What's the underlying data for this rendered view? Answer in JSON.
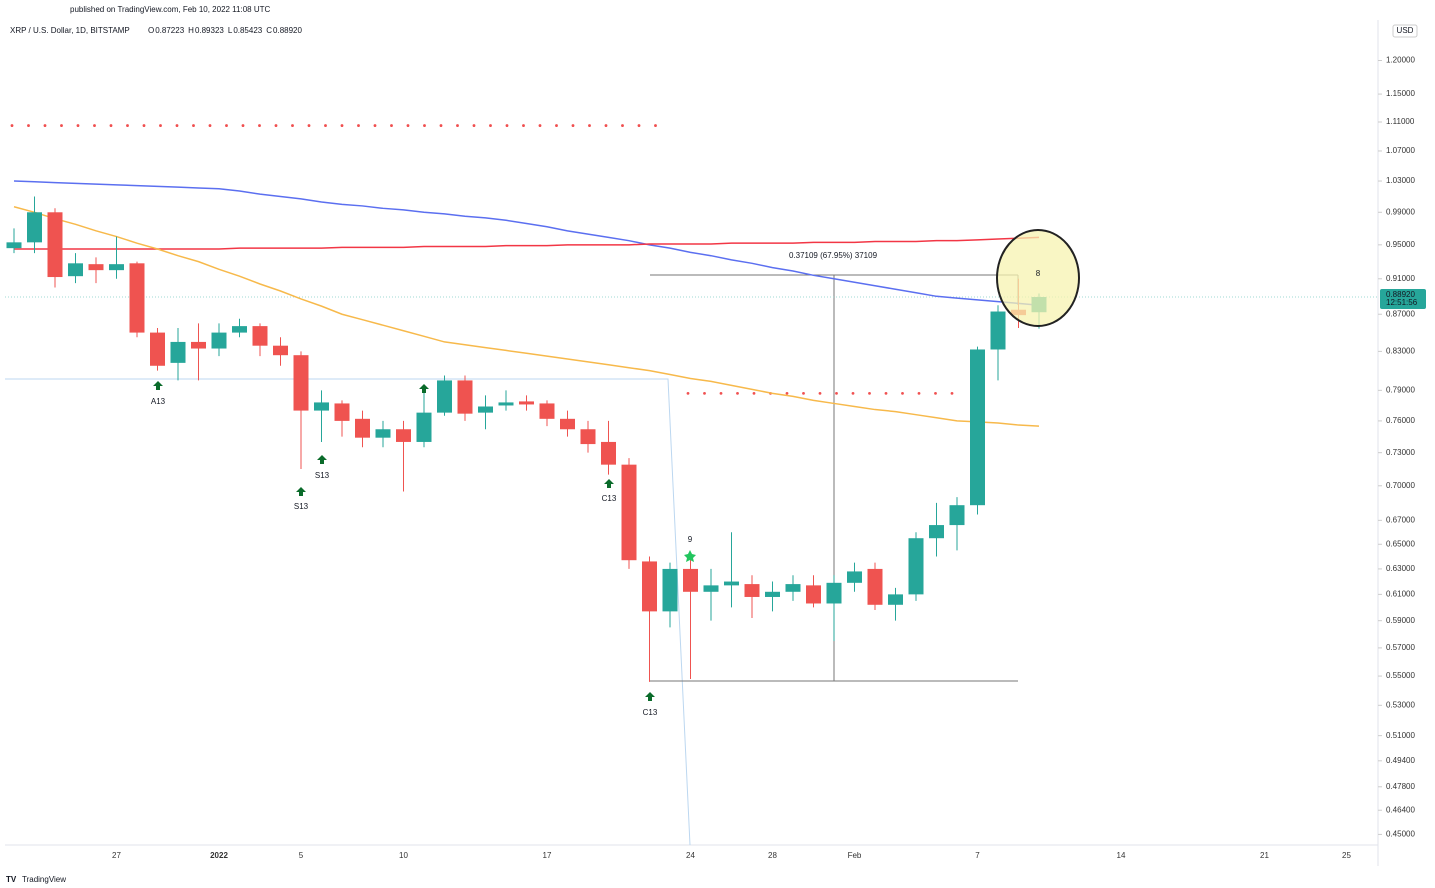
{
  "chart_data": {
    "type": "candlestick",
    "published": "published on TradingView.com, Feb 10, 2022 11:08 UTC",
    "symbol": "XRP / U.S. Dollar, 1D, BITSTAMP",
    "ohlc_prefixes": [
      "O",
      "H",
      "L",
      "C"
    ],
    "currency": "USD",
    "brand": "TradingView",
    "countdown": "12:51:56",
    "last_price": {
      "value": 0.8892,
      "label": "0.88920"
    },
    "log_scale": true,
    "up_color": "#26a69a",
    "down_color": "#ef5350",
    "categories": [
      null,
      null,
      null,
      null,
      null,
      "27",
      null,
      null,
      null,
      null,
      "2022",
      null,
      null,
      null,
      "5",
      null,
      null,
      null,
      null,
      "10",
      null,
      null,
      null,
      null,
      null,
      null,
      "17",
      null,
      null,
      null,
      null,
      null,
      null,
      "24",
      null,
      null,
      null,
      "28",
      null,
      null,
      null,
      "Feb",
      null,
      null,
      null,
      null,
      null,
      "7",
      null,
      null,
      null,
      null,
      null,
      null,
      "14",
      null,
      null,
      null,
      null,
      null,
      null,
      "21",
      null,
      null,
      null,
      "25",
      null
    ],
    "open": [
      0.946,
      0.953,
      0.99,
      0.913,
      0.927,
      0.92,
      0.928,
      0.85,
      0.818,
      0.84,
      0.833,
      0.85,
      0.857,
      0.836,
      0.826,
      0.77,
      0.777,
      0.762,
      0.744,
      0.752,
      0.74,
      0.768,
      0.8,
      0.768,
      0.775,
      0.779,
      0.777,
      0.762,
      0.752,
      0.74,
      0.719,
      0.636,
      0.597,
      0.63,
      0.612,
      0.617,
      0.618,
      0.608,
      0.612,
      0.617,
      0.603,
      0.619,
      0.63,
      0.602,
      0.61,
      0.655,
      0.666,
      0.683,
      0.832,
      0.875,
      0.87223,
      null,
      null,
      null,
      null,
      null,
      null,
      null,
      null,
      null,
      null,
      null,
      null,
      null,
      null,
      null,
      null
    ],
    "high": [
      0.97,
      1.01,
      0.995,
      0.94,
      0.935,
      0.96,
      0.93,
      0.855,
      0.855,
      0.86,
      0.86,
      0.865,
      0.86,
      0.845,
      0.83,
      0.79,
      0.78,
      0.77,
      0.76,
      0.76,
      0.79,
      0.805,
      0.805,
      0.785,
      0.79,
      0.785,
      0.78,
      0.77,
      0.76,
      0.76,
      0.725,
      0.64,
      0.635,
      0.64,
      0.63,
      0.66,
      0.625,
      0.62,
      0.625,
      0.625,
      0.625,
      0.635,
      0.635,
      0.615,
      0.66,
      0.685,
      0.69,
      0.835,
      0.88,
      0.91,
      0.89323,
      null,
      null,
      null,
      null,
      null,
      null,
      null,
      null,
      null,
      null,
      null,
      null,
      null,
      null,
      null,
      null
    ],
    "low": [
      0.94,
      0.94,
      0.9,
      0.905,
      0.905,
      0.91,
      0.845,
      0.81,
      0.8,
      0.8,
      0.825,
      0.845,
      0.825,
      0.815,
      0.715,
      0.74,
      0.745,
      0.735,
      0.735,
      0.695,
      0.735,
      0.765,
      0.76,
      0.752,
      0.77,
      0.77,
      0.755,
      0.745,
      0.73,
      0.71,
      0.63,
      0.546,
      0.585,
      0.548,
      0.59,
      0.6,
      0.592,
      0.597,
      0.605,
      0.6,
      0.575,
      0.612,
      0.598,
      0.59,
      0.605,
      0.64,
      0.645,
      0.675,
      0.8,
      0.855,
      0.85423,
      null,
      null,
      null,
      null,
      null,
      null,
      null,
      null,
      null,
      null,
      null,
      null,
      null,
      null,
      null,
      null
    ],
    "close": [
      0.953,
      0.99,
      0.912,
      0.928,
      0.92,
      0.927,
      0.85,
      0.815,
      0.84,
      0.833,
      0.85,
      0.857,
      0.836,
      0.826,
      0.77,
      0.778,
      0.76,
      0.744,
      0.752,
      0.74,
      0.768,
      0.8,
      0.767,
      0.774,
      0.778,
      0.776,
      0.762,
      0.752,
      0.738,
      0.719,
      0.637,
      0.597,
      0.63,
      0.612,
      0.617,
      0.62,
      0.608,
      0.612,
      0.618,
      0.603,
      0.619,
      0.628,
      0.602,
      0.61,
      0.655,
      0.666,
      0.683,
      0.832,
      0.873,
      0.869,
      0.8892,
      null,
      null,
      null,
      null,
      null,
      null,
      null,
      null,
      null,
      null,
      null,
      null,
      null,
      null,
      null,
      null
    ],
    "lines": [
      {
        "color": "#5b6ff0",
        "values": [
          1.03,
          1.029,
          1.028,
          1.027,
          1.026,
          1.025,
          1.024,
          1.023,
          1.022,
          1.021,
          1.02,
          1.017,
          1.013,
          1.01,
          1.007,
          1.003,
          1.0,
          0.998,
          0.995,
          0.993,
          0.99,
          0.988,
          0.985,
          0.983,
          0.98,
          0.976,
          0.972,
          0.967,
          0.963,
          0.959,
          0.955,
          0.95,
          0.946,
          0.941,
          0.937,
          0.932,
          0.928,
          0.923,
          0.919,
          0.914,
          0.91,
          0.906,
          0.902,
          0.898,
          0.894,
          0.89,
          0.888,
          0.886,
          0.884,
          0.882,
          0.88,
          null,
          null,
          null,
          null,
          null,
          null,
          null,
          null,
          null,
          null,
          null,
          null,
          null,
          null,
          null,
          null
        ]
      },
      {
        "color": "#f23645",
        "values": [
          0.945,
          0.945,
          0.945,
          0.945,
          0.945,
          0.945,
          0.945,
          0.945,
          0.945,
          0.945,
          0.945,
          0.946,
          0.946,
          0.946,
          0.946,
          0.946,
          0.947,
          0.947,
          0.947,
          0.947,
          0.948,
          0.948,
          0.948,
          0.948,
          0.949,
          0.949,
          0.949,
          0.95,
          0.95,
          0.95,
          0.95,
          0.951,
          0.951,
          0.951,
          0.951,
          0.952,
          0.952,
          0.952,
          0.952,
          0.953,
          0.953,
          0.953,
          0.954,
          0.954,
          0.954,
          0.955,
          0.955,
          0.956,
          0.957,
          0.958,
          0.959,
          null,
          null,
          null,
          null,
          null,
          null,
          null,
          null,
          null,
          null,
          null,
          null,
          null,
          null,
          null,
          null
        ]
      },
      {
        "color": "#f7b94b",
        "values": [
          0.997,
          0.99,
          0.982,
          0.975,
          0.967,
          0.96,
          0.952,
          0.945,
          0.937,
          0.93,
          0.921,
          0.913,
          0.904,
          0.896,
          0.887,
          0.879,
          0.87,
          0.864,
          0.858,
          0.852,
          0.846,
          0.84,
          0.837,
          0.834,
          0.831,
          0.828,
          0.825,
          0.822,
          0.819,
          0.816,
          0.813,
          0.81,
          0.806,
          0.802,
          0.799,
          0.795,
          0.791,
          0.787,
          0.784,
          0.78,
          0.777,
          0.774,
          0.771,
          0.769,
          0.766,
          0.763,
          0.76,
          0.759,
          0.758,
          0.756,
          0.755,
          null,
          null,
          null,
          null,
          null,
          null,
          null,
          null,
          null,
          null,
          null,
          null,
          null,
          null,
          null,
          null
        ]
      }
    ],
    "levels": [
      {
        "value": 1.105,
        "color": "#f05050"
      },
      {
        "value": 0.787,
        "color": "#f05050"
      }
    ],
    "annotations": {
      "measure": "0.37109 (67.95%) 37109",
      "signal_count": "8",
      "td_labels": [
        "A13",
        "S13",
        "S13",
        "C13",
        "C13",
        "9"
      ]
    },
    "ylim": [
      0.444,
      1.26
    ],
    "yticks": [
      {
        "value": 1.2,
        "label": "1.20000"
      },
      {
        "value": 1.15,
        "label": "1.15000"
      },
      {
        "value": 1.11,
        "label": "1.11000"
      },
      {
        "value": 1.07,
        "label": "1.07000"
      },
      {
        "value": 1.03,
        "label": "1.03000"
      },
      {
        "value": 0.99,
        "label": "0.99000"
      },
      {
        "value": 0.95,
        "label": "0.95000"
      },
      {
        "value": 0.91,
        "label": "0.91000"
      },
      {
        "value": 0.87,
        "label": "0.87000"
      },
      {
        "value": 0.83,
        "label": "0.83000"
      },
      {
        "value": 0.79,
        "label": "0.79000"
      },
      {
        "value": 0.76,
        "label": "0.76000"
      },
      {
        "value": 0.73,
        "label": "0.73000"
      },
      {
        "value": 0.7,
        "label": "0.70000"
      },
      {
        "value": 0.67,
        "label": "0.67000"
      },
      {
        "value": 0.65,
        "label": "0.65000"
      },
      {
        "value": 0.63,
        "label": "0.63000"
      },
      {
        "value": 0.61,
        "label": "0.61000"
      },
      {
        "value": 0.59,
        "label": "0.59000"
      },
      {
        "value": 0.57,
        "label": "0.57000"
      },
      {
        "value": 0.55,
        "label": "0.55000"
      },
      {
        "value": 0.53,
        "label": "0.53000"
      },
      {
        "value": 0.51,
        "label": "0.51000"
      },
      {
        "value": 0.494,
        "label": "0.49400"
      },
      {
        "value": 0.478,
        "label": "0.47800"
      },
      {
        "value": 0.464,
        "label": "0.46400"
      },
      {
        "value": 0.45,
        "label": "0.45000"
      }
    ]
  }
}
